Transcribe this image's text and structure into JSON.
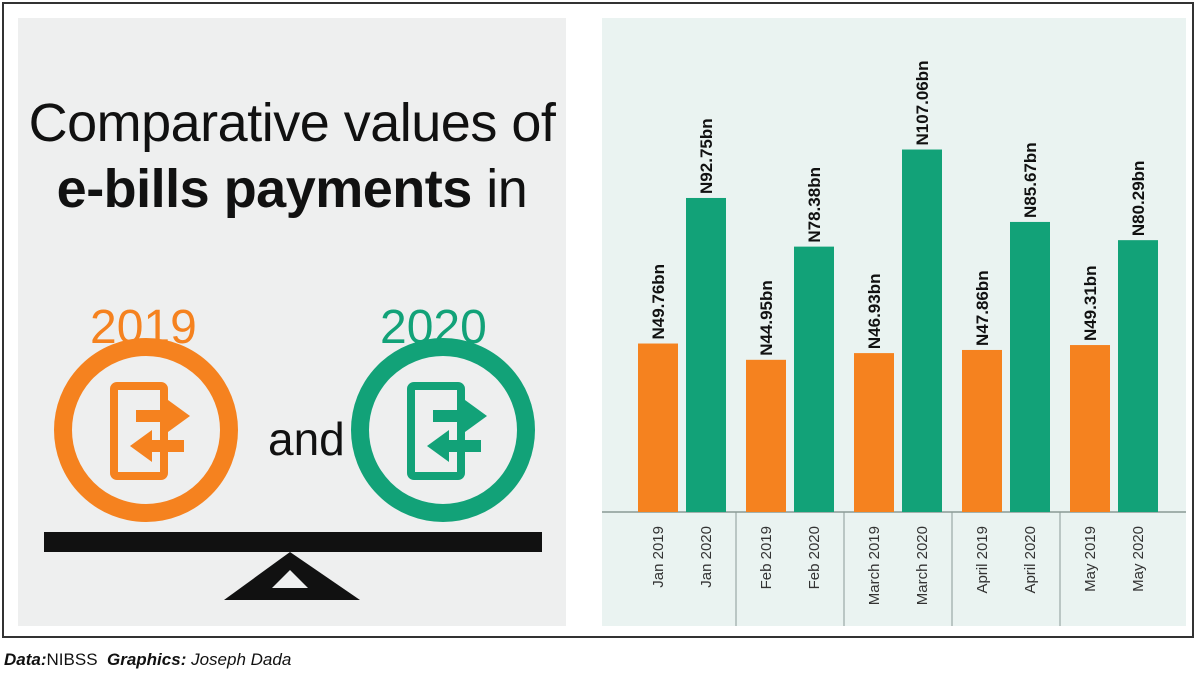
{
  "infographic": {
    "title_line1": "Comparative values of",
    "title_bold": "e-bills payments",
    "title_after_bold": " in",
    "year_a": "2019",
    "year_b": "2020",
    "connector": "and",
    "colors": {
      "orange": "#f5821f",
      "green": "#12a278",
      "scale": "#111111"
    },
    "icons": [
      "phone-transfer-icon",
      "balance-scale-icon"
    ]
  },
  "footer": {
    "data_label": "Data:",
    "data_value": "NIBSS",
    "graphics_label": "Graphics:",
    "graphics_value": "Joseph Dada"
  },
  "chart_data": {
    "type": "bar",
    "categories": [
      "Jan",
      "Feb",
      "March",
      "April",
      "May"
    ],
    "series": [
      {
        "name": "2019",
        "color": "#f5821f",
        "values": [
          49.76,
          44.95,
          46.93,
          47.86,
          49.31
        ],
        "labels": [
          "N49.76bn",
          "N44.95bn",
          "N46.93bn",
          "N47.86bn",
          "N49.31bn"
        ],
        "tick_labels": [
          "Jan 2019",
          "Feb 2019",
          "March 2019",
          "April 2019",
          "May 2019"
        ]
      },
      {
        "name": "2020",
        "color": "#12a278",
        "values": [
          92.75,
          78.38,
          107.06,
          85.67,
          80.29
        ],
        "labels": [
          "N92.75bn",
          "N78.38bn",
          "N107.06bn",
          "N85.67bn",
          "N80.29bn"
        ],
        "tick_labels": [
          "Jan 2020",
          "Feb 2020",
          "March 2020",
          "April 2020",
          "May 2020"
        ]
      }
    ],
    "title": "",
    "xlabel": "",
    "ylabel": "",
    "ylim": [
      0,
      120
    ],
    "grid": false,
    "legend": "none"
  }
}
